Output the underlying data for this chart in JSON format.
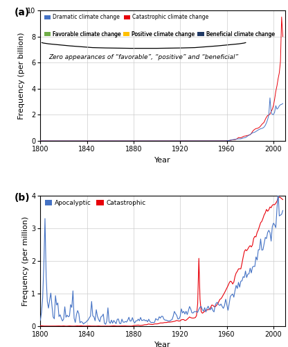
{
  "panel_a": {
    "ylabel": "Frequency (per billion)",
    "xlabel": "Year",
    "xlim": [
      1800,
      2010
    ],
    "ylim": [
      0,
      10
    ],
    "yticks": [
      0,
      2,
      4,
      6,
      8,
      10
    ],
    "xticks": [
      1800,
      1840,
      1880,
      1920,
      1960,
      2000
    ],
    "annotation_text": "Zero appearances of “favorable”, “positive” and “beneficial”",
    "label": "(a)"
  },
  "panel_b": {
    "ylabel": "Frequency (per million)",
    "xlabel": "Year",
    "xlim": [
      1800,
      2010
    ],
    "ylim": [
      0,
      4
    ],
    "yticks": [
      0,
      1,
      2,
      3,
      4
    ],
    "xticks": [
      1800,
      1840,
      1880,
      1920,
      1960,
      2000
    ],
    "label": "(b)"
  },
  "colors": {
    "dramatic": "#4472C4",
    "catastrophic_a": "#E8000A",
    "favorable": "#70AD47",
    "positive": "#FFC000",
    "beneficial": "#1F3864",
    "apocalyptic": "#4472C4",
    "catastrophic_b": "#E8000A"
  }
}
